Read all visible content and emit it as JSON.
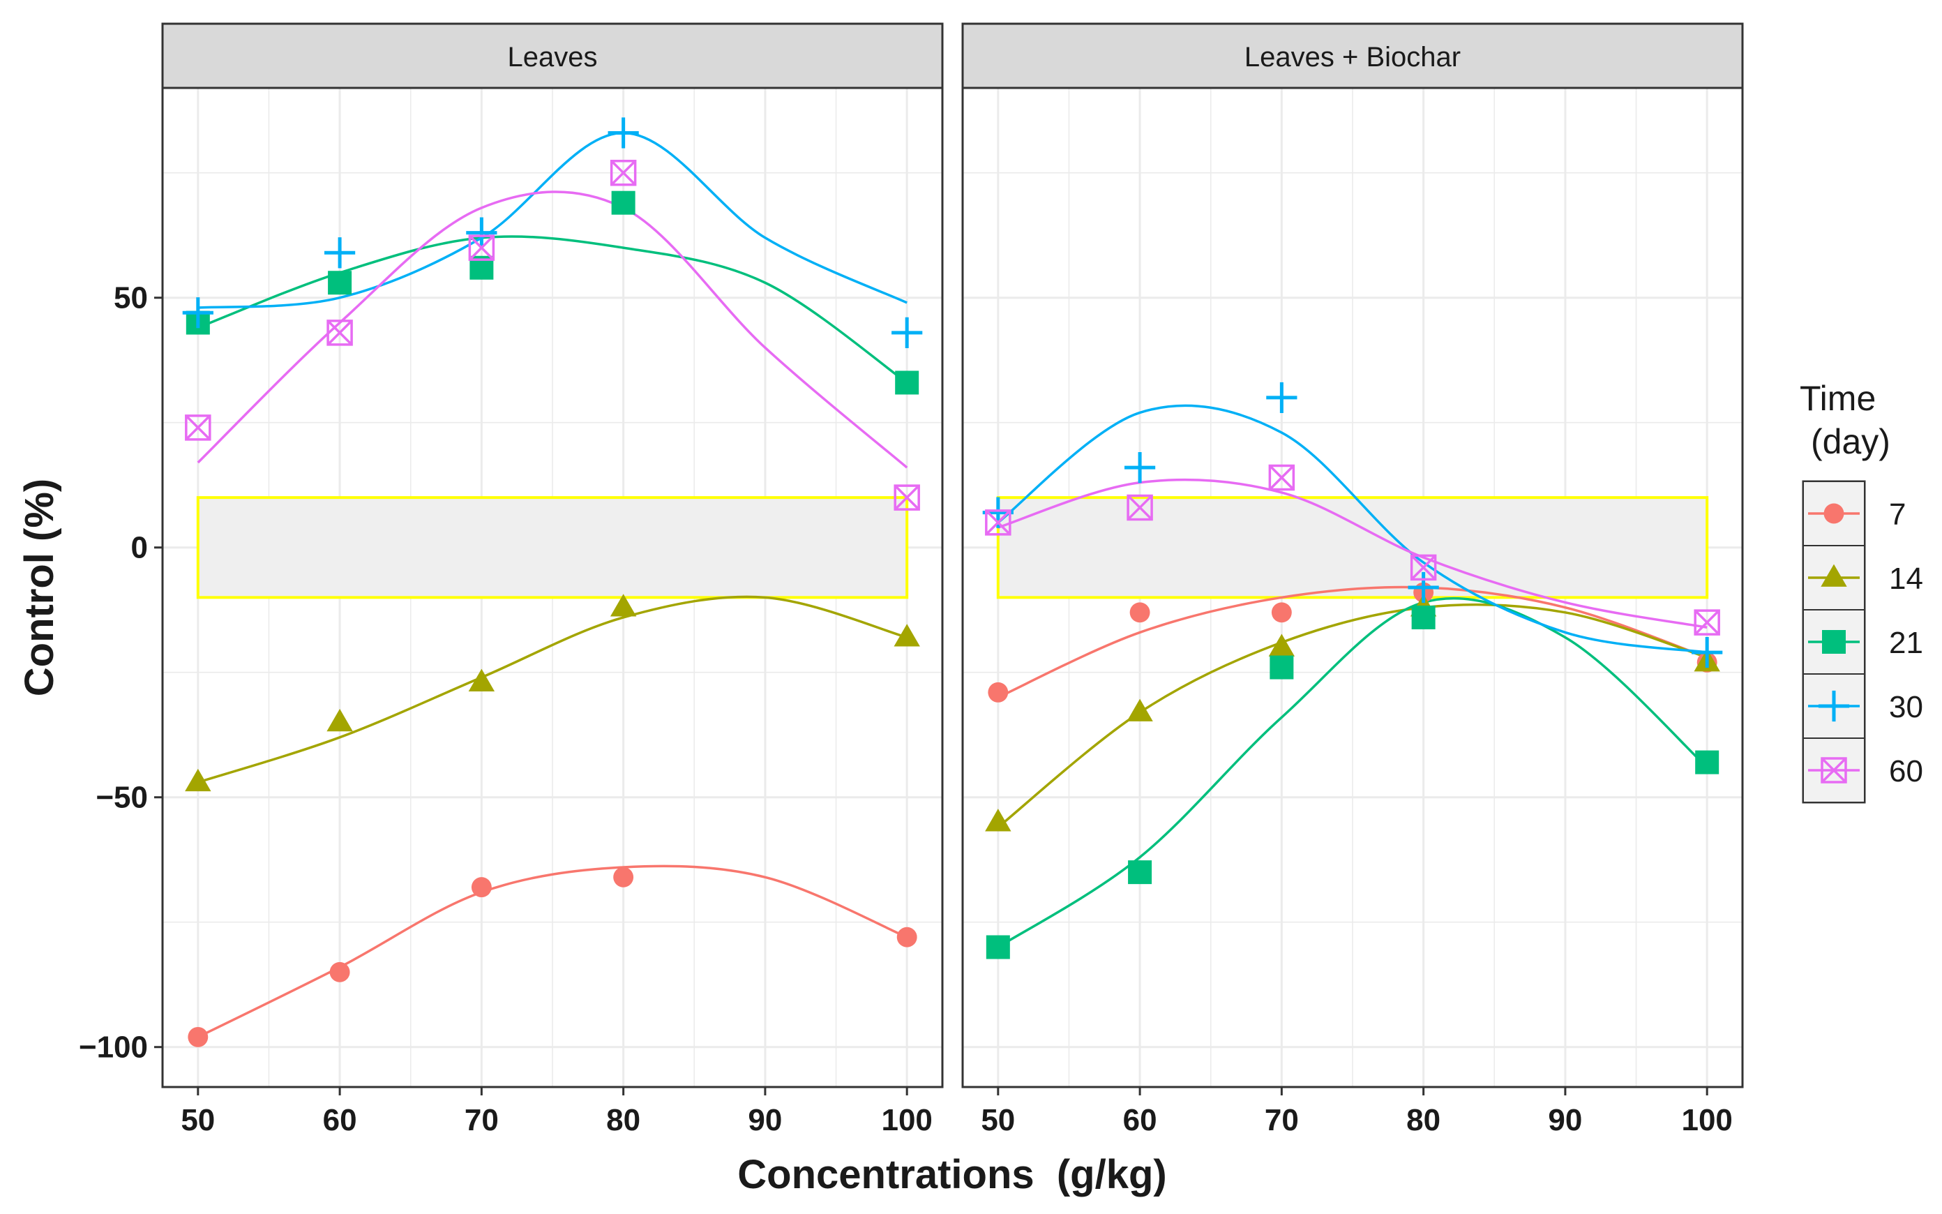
{
  "chart_data": {
    "type": "line",
    "facets": [
      {
        "title": "Leaves",
        "series": [
          {
            "name": "7",
            "x": [
              50,
              60,
              70,
              80,
              100
            ],
            "y": [
              -98,
              -85,
              -68,
              -66,
              -78
            ],
            "fit_y": [
              -98,
              -84,
              -69,
              -64,
              -66,
              -78
            ]
          },
          {
            "name": "14",
            "x": [
              50,
              60,
              70,
              80,
              100
            ],
            "y": [
              -47,
              -35,
              -27,
              -12,
              -18
            ],
            "fit_y": [
              -47,
              -38,
              -26,
              -14,
              -10,
              -18
            ]
          },
          {
            "name": "21",
            "x": [
              50,
              60,
              70,
              80,
              100
            ],
            "y": [
              45,
              53,
              56,
              69,
              33
            ],
            "fit_y": [
              44,
              55,
              62,
              60,
              53,
              33
            ]
          },
          {
            "name": "30",
            "x": [
              50,
              60,
              70,
              80,
              100
            ],
            "y": [
              47,
              59,
              63,
              83,
              43
            ],
            "fit_y": [
              48,
              50,
              62,
              83,
              62,
              49
            ]
          },
          {
            "name": "60",
            "x": [
              50,
              60,
              70,
              80,
              100
            ],
            "y": [
              24,
              43,
              60,
              75,
              10
            ],
            "fit_y": [
              17,
              45,
              68,
              68,
              40,
              16
            ]
          }
        ]
      },
      {
        "title": "Leaves + Biochar",
        "series": [
          {
            "name": "7",
            "x": [
              50,
              60,
              70,
              80,
              100
            ],
            "y": [
              -29,
              -13,
              -13,
              -9,
              -23
            ],
            "fit_y": [
              -30,
              -17,
              -10,
              -8,
              -12,
              -22
            ]
          },
          {
            "name": "14",
            "x": [
              50,
              60,
              70,
              80,
              100
            ],
            "y": [
              -55,
              -33,
              -20,
              -12,
              -23
            ],
            "fit_y": [
              -56,
              -33,
              -19,
              -12,
              -13,
              -22
            ]
          },
          {
            "name": "21",
            "x": [
              50,
              60,
              70,
              80,
              100
            ],
            "y": [
              -80,
              -65,
              -24,
              -14,
              -43
            ],
            "fit_y": [
              -80,
              -62,
              -34,
              -11,
              -18,
              -44
            ]
          },
          {
            "name": "30",
            "x": [
              50,
              60,
              70,
              80,
              100
            ],
            "y": [
              7,
              16,
              30,
              -8,
              -21
            ],
            "fit_y": [
              5,
              27,
              23,
              -3,
              -17,
              -21
            ]
          },
          {
            "name": "60",
            "x": [
              50,
              60,
              70,
              80,
              100
            ],
            "y": [
              5,
              8,
              14,
              -4,
              -15
            ],
            "fit_y": [
              4,
              13,
              11,
              -2,
              -11,
              -16
            ]
          }
        ]
      }
    ],
    "fit_x": [
      50,
      60,
      70,
      80,
      90,
      100
    ],
    "x_ticks": [
      50,
      60,
      70,
      80,
      90,
      100
    ],
    "y_ticks": [
      50,
      0,
      -50,
      -100
    ],
    "y_tick_labels": [
      "50",
      "0",
      "−50",
      "−100"
    ],
    "xlim": [
      47.5,
      102.5
    ],
    "ylim": [
      -108,
      92
    ],
    "highlight_band": [
      -10,
      10
    ],
    "xlabel": "Concentrations  (g/kg)",
    "ylabel": "Control (%)",
    "legend": {
      "title_line1": "Time",
      "title_line2": "(day)",
      "position": "right",
      "entries": [
        {
          "label": "7",
          "shape": "circle",
          "color": "#F8766D"
        },
        {
          "label": "14",
          "shape": "triangle",
          "color": "#A3A500"
        },
        {
          "label": "21",
          "shape": "square",
          "color": "#00BF7D"
        },
        {
          "label": "30",
          "shape": "plus",
          "color": "#00B0F6"
        },
        {
          "label": "60",
          "shape": "boxed-x",
          "color": "#E76BF3"
        }
      ]
    },
    "colors": {
      "7": "#F8766D",
      "14": "#A3A500",
      "21": "#00BF7D",
      "30": "#00B0F6",
      "60": "#E76BF3",
      "band_fill": "#efefef",
      "band_stroke": "#ffff00",
      "strip_fill": "#d9d9d9",
      "grid": "#ebebeb",
      "frame": "#333333"
    }
  }
}
